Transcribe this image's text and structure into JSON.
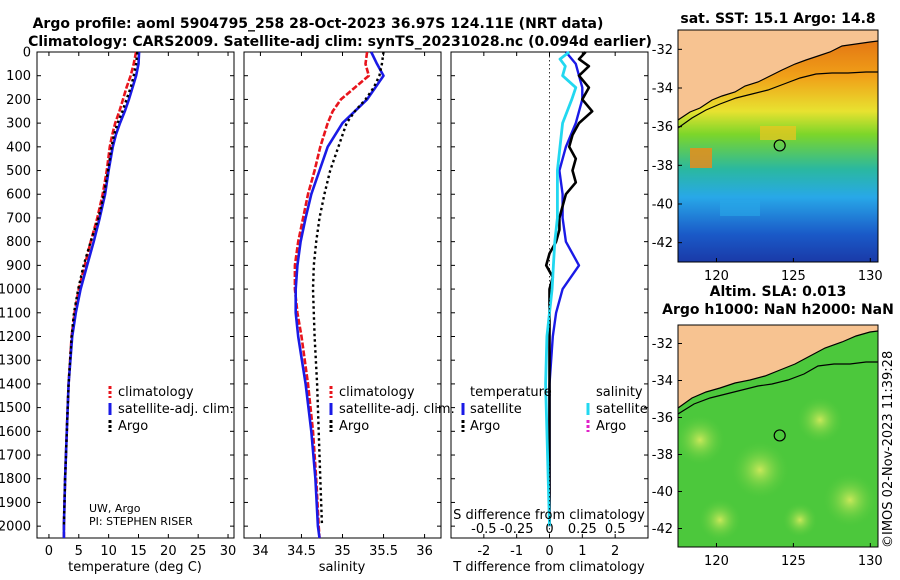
{
  "header": {
    "line1": "Argo profile: aoml 5904795_258 28-Oct-2023 36.97S 124.11E (NRT data)",
    "line2": "Climatology: CARS2009. Satellite-adj clim: synTS_20231028.nc (0.094d earlier)"
  },
  "colors": {
    "climatology": "#e8141c",
    "satellite": "#1a1ae6",
    "argo": "#000000",
    "sat_salinity": "#22d8f0",
    "argo_salinity": "#e022c8",
    "land": "#f7c391"
  },
  "chart_data": [
    {
      "type": "line",
      "panel": "temperature",
      "xlabel": "temperature (deg C)",
      "ylabel": "",
      "xlim": [
        -2,
        31
      ],
      "ylim": [
        2050,
        0
      ],
      "xticks": [
        "0",
        "5",
        "10",
        "15",
        "20",
        "25",
        "30"
      ],
      "yticks": [
        "0",
        "100",
        "200",
        "300",
        "400",
        "500",
        "600",
        "700",
        "800",
        "900",
        "1000",
        "1100",
        "1200",
        "1300",
        "1400",
        "1500",
        "1600",
        "1700",
        "1800",
        "1900",
        "2000"
      ],
      "legend": [
        "climatology",
        "satellite-adj. clim.",
        "Argo"
      ],
      "series": [
        {
          "name": "climatology",
          "depth": [
            0,
            50,
            100,
            150,
            200,
            250,
            300,
            350,
            400,
            500,
            600,
            700,
            800,
            900,
            1000,
            1100,
            1200,
            1400,
            1600,
            1800,
            2000,
            2050
          ],
          "values": [
            14.6,
            14.2,
            13.7,
            13.0,
            12.4,
            11.8,
            11.1,
            10.6,
            10.2,
            9.7,
            9.0,
            8.1,
            7.0,
            6.0,
            5.0,
            4.3,
            3.8,
            3.3,
            3.0,
            2.7,
            2.5,
            2.5
          ]
        },
        {
          "name": "satellite-adj. clim.",
          "depth": [
            0,
            50,
            100,
            150,
            200,
            250,
            300,
            350,
            400,
            500,
            600,
            700,
            800,
            900,
            1000,
            1100,
            1200,
            1400,
            1600,
            1800,
            2000,
            2050
          ],
          "values": [
            15.1,
            15.0,
            14.6,
            14.0,
            13.4,
            12.7,
            11.9,
            11.2,
            10.7,
            10.0,
            9.4,
            8.5,
            7.5,
            6.4,
            5.3,
            4.5,
            3.9,
            3.3,
            3.0,
            2.7,
            2.5,
            2.5
          ]
        },
        {
          "name": "Argo",
          "depth": [
            0,
            50,
            100,
            150,
            200,
            250,
            300,
            350,
            400,
            500,
            600,
            700,
            800,
            900,
            1000,
            1100,
            1200,
            1400,
            1600,
            1800,
            2000
          ],
          "values": [
            14.8,
            14.6,
            14.2,
            13.7,
            13.0,
            12.3,
            11.5,
            10.9,
            10.5,
            9.9,
            9.2,
            8.3,
            7.0,
            5.8,
            4.9,
            4.2,
            3.8,
            3.3,
            3.0,
            2.7,
            2.5
          ]
        }
      ],
      "annotations": [
        "UW, Argo",
        "PI: STEPHEN RISER"
      ]
    },
    {
      "type": "line",
      "panel": "salinity",
      "xlabel": "salinity",
      "xlim": [
        33.8,
        36.2
      ],
      "ylim": [
        2050,
        0
      ],
      "xticks": [
        "34",
        "34.5",
        "35",
        "35.5",
        "36"
      ],
      "legend": [
        "climatology",
        "satellite-adj. clim.",
        "Argo"
      ],
      "series": [
        {
          "name": "climatology",
          "depth": [
            0,
            50,
            100,
            150,
            200,
            250,
            300,
            400,
            500,
            600,
            700,
            800,
            900,
            1000,
            1100,
            1200,
            1400,
            1600,
            1800,
            2000,
            2050
          ],
          "values": [
            35.3,
            35.28,
            35.32,
            35.15,
            34.98,
            34.88,
            34.82,
            34.73,
            34.66,
            34.58,
            34.52,
            34.46,
            34.42,
            34.42,
            34.45,
            34.5,
            34.58,
            34.64,
            34.68,
            34.71,
            34.72
          ]
        },
        {
          "name": "satellite-adj. clim.",
          "depth": [
            0,
            50,
            100,
            150,
            200,
            250,
            300,
            400,
            500,
            600,
            700,
            800,
            900,
            1000,
            1100,
            1200,
            1400,
            1600,
            1800,
            2000,
            2050
          ],
          "values": [
            35.35,
            35.42,
            35.5,
            35.4,
            35.3,
            35.15,
            35.0,
            34.82,
            34.72,
            34.62,
            34.55,
            34.49,
            34.45,
            34.43,
            34.43,
            34.46,
            34.55,
            34.62,
            34.67,
            34.7,
            34.72
          ]
        },
        {
          "name": "Argo",
          "depth": [
            0,
            50,
            100,
            150,
            200,
            250,
            300,
            400,
            500,
            600,
            700,
            800,
            900,
            1000,
            1100,
            1200,
            1400,
            1600,
            1800,
            2000
          ],
          "values": [
            35.5,
            35.48,
            35.45,
            35.38,
            35.28,
            35.15,
            35.05,
            34.95,
            34.85,
            34.78,
            34.72,
            34.68,
            34.65,
            34.64,
            34.65,
            34.66,
            34.69,
            34.71,
            34.73,
            34.75
          ]
        }
      ]
    },
    {
      "type": "line",
      "panel": "difference",
      "xlabel": "T difference from climatology",
      "xlabel2": "S difference from climatology",
      "xlim": [
        -3,
        3
      ],
      "ylim": [
        2050,
        0
      ],
      "xticks": [
        "-2",
        "-1",
        "0",
        "1",
        "2"
      ],
      "xticks2": [
        "-0.5",
        "-0.25",
        "0",
        "0.25",
        "0.5"
      ],
      "legend_t_title": "temperature",
      "legend_s_title": "salinity",
      "legend_t": [
        "satellite",
        "Argo"
      ],
      "legend_s": [
        "satellite",
        "Argo"
      ],
      "series": [
        {
          "name": "T satellite",
          "depth": [
            0,
            50,
            100,
            150,
            200,
            300,
            400,
            500,
            600,
            700,
            800,
            900,
            1000,
            1100,
            1200,
            1400,
            1600,
            1800,
            2000
          ],
          "values": [
            0.5,
            0.8,
            0.9,
            1.0,
            1.0,
            0.8,
            0.5,
            0.3,
            0.4,
            0.4,
            0.5,
            0.9,
            0.4,
            0.2,
            0.1,
            0.0,
            0.0,
            0.0,
            0.0
          ]
        },
        {
          "name": "T Argo",
          "depth": [
            0,
            30,
            60,
            100,
            150,
            200,
            250,
            300,
            350,
            400,
            450,
            500,
            550,
            600,
            650,
            700,
            750,
            800,
            850,
            900,
            950,
            1000,
            1100,
            1200,
            1400,
            1600,
            1800,
            2000
          ],
          "values": [
            1.1,
            0.9,
            1.2,
            0.9,
            1.2,
            1.0,
            1.3,
            0.9,
            0.7,
            0.6,
            0.8,
            0.7,
            0.8,
            0.5,
            0.4,
            0.3,
            0.3,
            0.2,
            0.0,
            -0.1,
            0.1,
            0.0,
            0.0,
            0.0,
            0.0,
            0.0,
            0.0,
            0.0
          ]
        },
        {
          "name": "S satellite",
          "depth": [
            0,
            30,
            60,
            100,
            150,
            200,
            300,
            400,
            500,
            600,
            700,
            800,
            900,
            1000,
            1100,
            1200,
            1400,
            1600,
            1800,
            2000
          ],
          "values": [
            0.15,
            0.08,
            0.12,
            0.1,
            0.2,
            0.17,
            0.1,
            0.08,
            0.06,
            0.06,
            0.06,
            0.04,
            0.03,
            0.02,
            0.0,
            -0.02,
            -0.03,
            -0.02,
            -0.01,
            0.0
          ]
        },
        {
          "name": "S Argo",
          "depth": [],
          "values": []
        }
      ]
    }
  ],
  "map_top": {
    "title": "sat. SST: 15.1 Argo: 14.8",
    "xticks": [
      "120",
      "125",
      "130"
    ],
    "yticks": [
      "-32",
      "-34",
      "-36",
      "-38",
      "-40",
      "-42"
    ],
    "xlim": [
      117.5,
      130.5
    ],
    "ylim": [
      -43,
      -31
    ],
    "marker": {
      "lon": 124.11,
      "lat": -36.97
    }
  },
  "map_bottom": {
    "title1": "Altim. SLA: 0.013",
    "title2": "Argo h1000: NaN h2000: NaN",
    "xticks": [
      "120",
      "125",
      "130"
    ],
    "yticks": [
      "-32",
      "-34",
      "-36",
      "-38",
      "-40",
      "-42"
    ],
    "xlim": [
      117.5,
      130.5
    ],
    "ylim": [
      -43,
      -31
    ],
    "marker": {
      "lon": 124.11,
      "lat": -36.97
    }
  },
  "footer": {
    "stamp": "©IMOS 02-Nov-2023 11:39:28"
  }
}
